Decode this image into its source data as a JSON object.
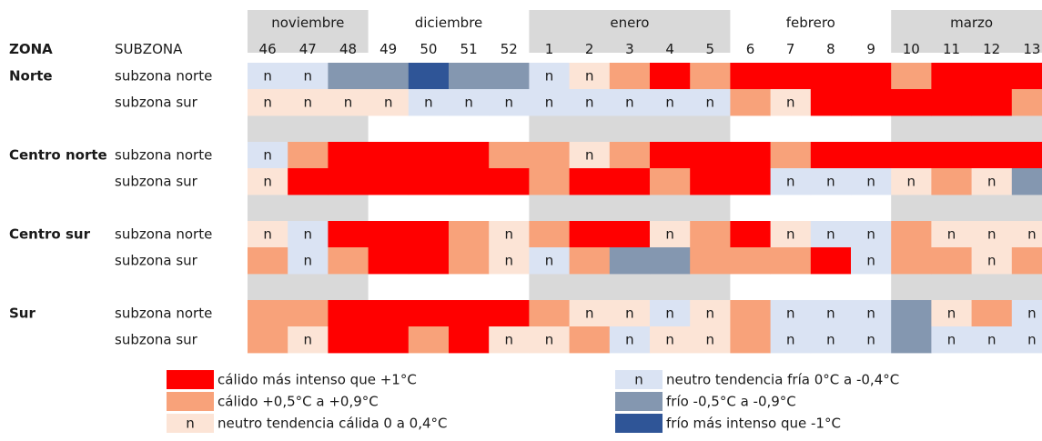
{
  "chart_data": {
    "type": "heatmap",
    "header": {
      "zona": "ZONA",
      "subzona": "SUBZONA"
    },
    "months": [
      {
        "name": "noviembre",
        "weeks": [
          "46",
          "47",
          "48"
        ]
      },
      {
        "name": "diciembre",
        "weeks": [
          "49",
          "50",
          "51",
          "52"
        ]
      },
      {
        "name": "enero",
        "weeks": [
          "1",
          "2",
          "3",
          "4",
          "5"
        ]
      },
      {
        "name": "febrero",
        "weeks": [
          "6",
          "7",
          "8",
          "9"
        ]
      },
      {
        "name": "marzo",
        "weeks": [
          "10",
          "11",
          "12",
          "13"
        ]
      }
    ],
    "neutral_mark": "n",
    "zones": [
      {
        "name": "Norte",
        "rows": [
          {
            "subzone": "subzona norte",
            "cells": [
              "nf",
              "nf",
              "f",
              "f",
              "fi",
              "f",
              "f",
              "nf",
              "nc",
              "c",
              "ci",
              "c",
              "ci",
              "ci",
              "ci",
              "ci",
              "c",
              "ci",
              "ci",
              "ci"
            ]
          },
          {
            "subzone": "subzona sur",
            "cells": [
              "nc",
              "nc",
              "nc",
              "nc",
              "nf",
              "nf",
              "nf",
              "nf",
              "nf",
              "nf",
              "nf",
              "nf",
              "c",
              "nc",
              "ci",
              "ci",
              "ci",
              "ci",
              "ci",
              "c"
            ]
          }
        ]
      },
      {
        "name": "Centro norte",
        "rows": [
          {
            "subzone": "subzona norte",
            "cells": [
              "nf",
              "c",
              "ci",
              "ci",
              "ci",
              "ci",
              "c",
              "c",
              "nc",
              "c",
              "ci",
              "ci",
              "ci",
              "c",
              "ci",
              "ci",
              "ci",
              "ci",
              "ci",
              "ci"
            ]
          },
          {
            "subzone": "subzona sur",
            "cells": [
              "nc",
              "ci",
              "ci",
              "ci",
              "ci",
              "ci",
              "ci",
              "c",
              "ci",
              "ci",
              "c",
              "ci",
              "ci",
              "nf",
              "nf",
              "nf",
              "nc",
              "c",
              "nc",
              "f"
            ]
          }
        ]
      },
      {
        "name": "Centro sur",
        "rows": [
          {
            "subzone": "subzona norte",
            "cells": [
              "nc",
              "nf",
              "ci",
              "ci",
              "ci",
              "c",
              "nc",
              "c",
              "ci",
              "ci",
              "nc",
              "c",
              "ci",
              "nc",
              "nf",
              "nf",
              "c",
              "nc",
              "nc",
              "nc"
            ]
          },
          {
            "subzone": "subzona sur",
            "cells": [
              "c",
              "nf",
              "c",
              "ci",
              "ci",
              "c",
              "nc",
              "nf",
              "c",
              "f",
              "f",
              "c",
              "c",
              "c",
              "ci",
              "nf",
              "c",
              "c",
              "nc",
              "c"
            ]
          }
        ]
      },
      {
        "name": "Sur",
        "rows": [
          {
            "subzone": "subzona norte",
            "cells": [
              "c",
              "c",
              "ci",
              "ci",
              "ci",
              "ci",
              "ci",
              "c",
              "nc",
              "nc",
              "nf",
              "nc",
              "c",
              "nf",
              "nf",
              "nf",
              "f",
              "nc",
              "c",
              "nf"
            ]
          },
          {
            "subzone": "subzona sur",
            "cells": [
              "c",
              "nc",
              "ci",
              "ci",
              "c",
              "ci",
              "nc",
              "nc",
              "c",
              "nf",
              "nc",
              "nc",
              "c",
              "nf",
              "nf",
              "nf",
              "f",
              "nf",
              "nf",
              "nf"
            ]
          }
        ]
      }
    ],
    "legend": [
      {
        "key": "ci",
        "mark": "",
        "label": "cálido más intenso que +1°C",
        "color": "#ff0000"
      },
      {
        "key": "c",
        "mark": "",
        "label": "cálido +0,5°C a +0,9°C",
        "color": "#f8a27a"
      },
      {
        "key": "nc",
        "mark": "n",
        "label": "neutro tendencia cálida 0 a 0,4°C",
        "color": "#fce4d6"
      },
      {
        "key": "nf",
        "mark": "n",
        "label": "neutro tendencia fría 0°C a -0,4°C",
        "color": "#dae3f3"
      },
      {
        "key": "f",
        "mark": "",
        "label": "frío -0,5°C a -0,9°C",
        "color": "#8497b0"
      },
      {
        "key": "fi",
        "mark": "",
        "label": "frío más intenso que -1°C",
        "color": "#2f5597"
      }
    ],
    "band_color": "#d9d9d9"
  }
}
